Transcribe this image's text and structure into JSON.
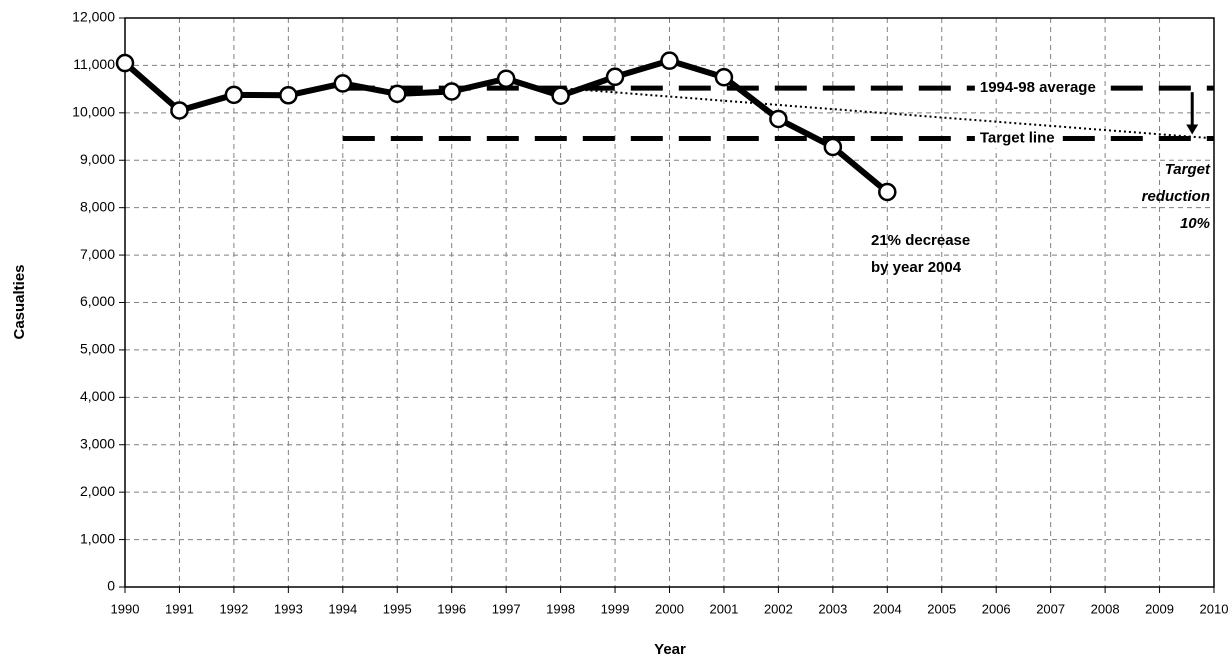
{
  "chart_data": {
    "type": "line",
    "x_label": "Year",
    "y_label": "Casualties",
    "x": [
      1990,
      1991,
      1992,
      1993,
      1994,
      1995,
      1996,
      1997,
      1998,
      1999,
      2000,
      2001,
      2002,
      2003,
      2004
    ],
    "values": [
      11050,
      10050,
      10380,
      10370,
      10620,
      10400,
      10450,
      10720,
      10360,
      10760,
      11100,
      10750,
      9870,
      9280,
      8330
    ],
    "color": "#000000",
    "xlim": [
      1990,
      2010
    ],
    "xticks": [
      1990,
      1991,
      1992,
      1993,
      1994,
      1995,
      1996,
      1997,
      1998,
      1999,
      2000,
      2001,
      2002,
      2003,
      2004,
      2005,
      2006,
      2007,
      2008,
      2009,
      2010
    ],
    "ylim": [
      0,
      12000
    ],
    "yticks": [
      0,
      {
        "value": 1000,
        "label": "1,000"
      },
      {
        "value": 2000,
        "label": "2,000"
      },
      {
        "value": 3000,
        "label": "3,000"
      },
      {
        "value": 4000,
        "label": "4,000"
      },
      {
        "value": 5000,
        "label": "5,000"
      },
      {
        "value": 6000,
        "label": "6,000"
      },
      {
        "value": 7000,
        "label": "7,000"
      },
      {
        "value": 8000,
        "label": "8,000"
      },
      {
        "value": 9000,
        "label": "9,000"
      },
      {
        "value": 10000,
        "label": "10,000"
      },
      {
        "value": 11000,
        "label": "11,000"
      },
      {
        "value": 12000,
        "label": "12,000"
      }
    ],
    "grid": true,
    "reference_lines": [
      {
        "label": "1994-98 average",
        "value": 10520,
        "x": [
          1994,
          2010
        ]
      },
      {
        "label": "Target line",
        "value": 9460,
        "x": [
          1994,
          2010
        ]
      }
    ],
    "trend": {
      "x": [
        1998,
        2010
      ],
      "values": [
        10520,
        9460
      ]
    },
    "annotations": [
      {
        "lines": [
          "21% decrease",
          "by year 2004"
        ]
      },
      {
        "lines": [
          "Target",
          "reduction",
          "10%"
        ]
      }
    ]
  }
}
